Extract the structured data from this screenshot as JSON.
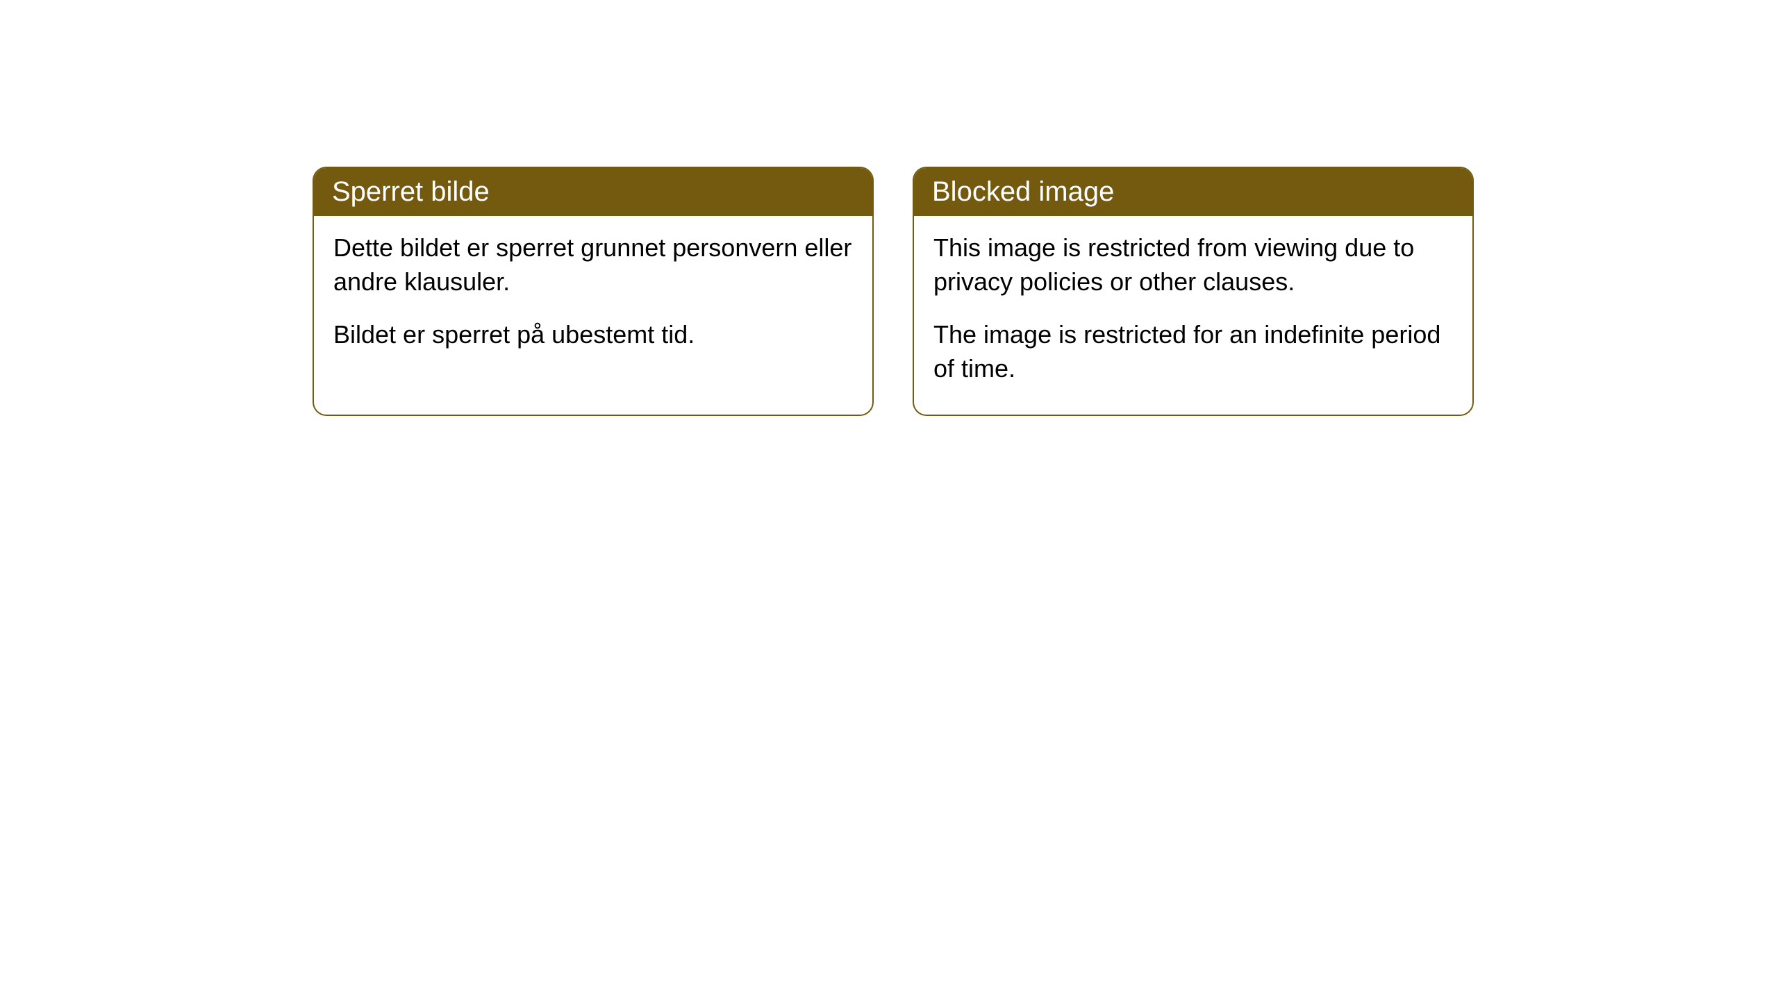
{
  "cards": [
    {
      "title": "Sperret bilde",
      "paragraph1": "Dette bildet er sperret grunnet personvern eller andre klausuler.",
      "paragraph2": "Bildet er sperret på ubestemt tid."
    },
    {
      "title": "Blocked image",
      "paragraph1": "This image is restricted from viewing due to privacy policies or other clauses.",
      "paragraph2": "The image is restricted for an indefinite period of time."
    }
  ],
  "styling": {
    "header_background": "#745a0f",
    "header_text_color": "#ffffff",
    "border_color": "#745a0f",
    "body_background": "#ffffff",
    "body_text_color": "#000000",
    "border_radius": 20,
    "title_fontsize": 40,
    "body_fontsize": 36
  }
}
